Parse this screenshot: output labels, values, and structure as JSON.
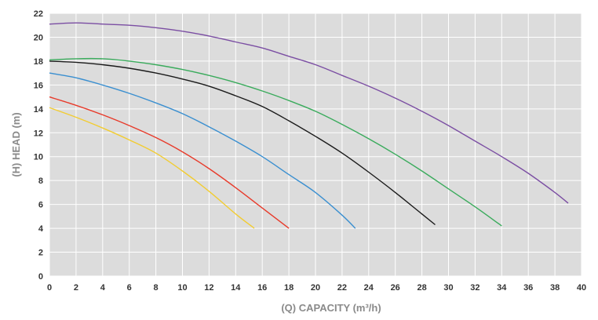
{
  "chart_data": {
    "type": "line",
    "title": "",
    "xlabel": "(Q) CAPACITY (m³/h)",
    "ylabel": "(H) HEAD (m)",
    "xlim": [
      0,
      40
    ],
    "ylim": [
      0,
      22
    ],
    "xticks": [
      0,
      2,
      4,
      6,
      8,
      10,
      12,
      14,
      16,
      18,
      20,
      22,
      24,
      26,
      28,
      30,
      32,
      34,
      36,
      38,
      40
    ],
    "yticks": [
      0,
      2,
      4,
      6,
      8,
      10,
      12,
      14,
      16,
      18,
      20,
      22
    ],
    "grid": true,
    "background": "#dcdcdc",
    "series": [
      {
        "color": "#f2cc30",
        "points": [
          [
            0,
            14.1
          ],
          [
            2,
            13.3
          ],
          [
            4,
            12.4
          ],
          [
            6,
            11.4
          ],
          [
            8,
            10.3
          ],
          [
            10,
            8.8
          ],
          [
            12,
            7.1
          ],
          [
            14,
            5.2
          ],
          [
            15.4,
            4.0
          ]
        ]
      },
      {
        "color": "#e83a2a",
        "points": [
          [
            0,
            15.0
          ],
          [
            2,
            14.3
          ],
          [
            4,
            13.5
          ],
          [
            6,
            12.6
          ],
          [
            8,
            11.6
          ],
          [
            10,
            10.4
          ],
          [
            12,
            9.0
          ],
          [
            14,
            7.4
          ],
          [
            16,
            5.7
          ],
          [
            18,
            4.0
          ]
        ]
      },
      {
        "color": "#3a8fd0",
        "points": [
          [
            0,
            17.0
          ],
          [
            2,
            16.6
          ],
          [
            4,
            16.0
          ],
          [
            6,
            15.3
          ],
          [
            8,
            14.5
          ],
          [
            10,
            13.6
          ],
          [
            12,
            12.5
          ],
          [
            14,
            11.3
          ],
          [
            16,
            10.0
          ],
          [
            18,
            8.5
          ],
          [
            20,
            7.0
          ],
          [
            22,
            5.1
          ],
          [
            23,
            4.0
          ]
        ]
      },
      {
        "color": "#1a1a1a",
        "points": [
          [
            0,
            18.0
          ],
          [
            2,
            17.9
          ],
          [
            4,
            17.7
          ],
          [
            6,
            17.4
          ],
          [
            8,
            17.0
          ],
          [
            10,
            16.5
          ],
          [
            12,
            15.9
          ],
          [
            14,
            15.1
          ],
          [
            16,
            14.2
          ],
          [
            18,
            13.0
          ],
          [
            20,
            11.7
          ],
          [
            22,
            10.3
          ],
          [
            24,
            8.7
          ],
          [
            26,
            7.0
          ],
          [
            28,
            5.2
          ],
          [
            29,
            4.3
          ]
        ]
      },
      {
        "color": "#3aab5c",
        "points": [
          [
            0,
            18.1
          ],
          [
            2,
            18.2
          ],
          [
            4,
            18.2
          ],
          [
            6,
            18.0
          ],
          [
            8,
            17.7
          ],
          [
            10,
            17.3
          ],
          [
            12,
            16.8
          ],
          [
            14,
            16.2
          ],
          [
            16,
            15.5
          ],
          [
            18,
            14.7
          ],
          [
            20,
            13.8
          ],
          [
            22,
            12.7
          ],
          [
            24,
            11.5
          ],
          [
            26,
            10.2
          ],
          [
            28,
            8.8
          ],
          [
            30,
            7.3
          ],
          [
            32,
            5.8
          ],
          [
            34,
            4.2
          ]
        ]
      },
      {
        "color": "#7b4ea3",
        "points": [
          [
            0,
            21.1
          ],
          [
            2,
            21.2
          ],
          [
            4,
            21.1
          ],
          [
            6,
            21.0
          ],
          [
            8,
            20.8
          ],
          [
            10,
            20.5
          ],
          [
            12,
            20.1
          ],
          [
            14,
            19.6
          ],
          [
            16,
            19.1
          ],
          [
            18,
            18.4
          ],
          [
            20,
            17.7
          ],
          [
            22,
            16.8
          ],
          [
            24,
            15.9
          ],
          [
            26,
            14.9
          ],
          [
            28,
            13.8
          ],
          [
            30,
            12.6
          ],
          [
            32,
            11.3
          ],
          [
            34,
            10.0
          ],
          [
            36,
            8.6
          ],
          [
            38,
            7.0
          ],
          [
            39,
            6.1
          ]
        ]
      }
    ]
  }
}
